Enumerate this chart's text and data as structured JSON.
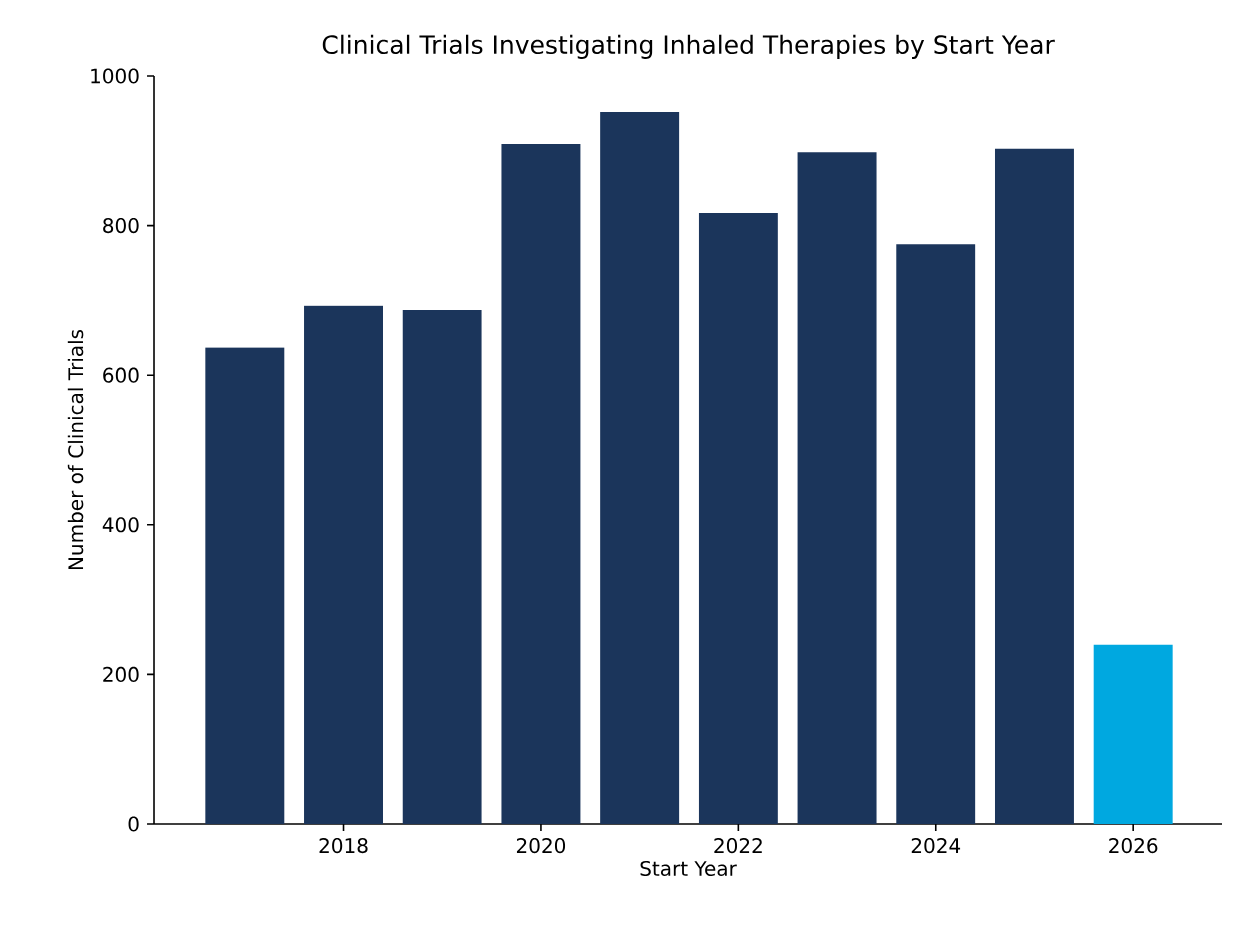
{
  "chart_data": {
    "type": "bar",
    "title": "Clinical Trials Investigating Inhaled Therapies by Start Year",
    "xlabel": "Start Year",
    "ylabel": "Number of Clinical Trials",
    "x": [
      2017,
      2018,
      2019,
      2020,
      2021,
      2022,
      2023,
      2024,
      2025,
      2026
    ],
    "values": [
      637,
      693,
      687,
      909,
      952,
      817,
      898,
      775,
      903,
      240
    ],
    "colors": [
      "#1b355b",
      "#1b355b",
      "#1b355b",
      "#1b355b",
      "#1b355b",
      "#1b355b",
      "#1b355b",
      "#1b355b",
      "#1b355b",
      "#00a8e0"
    ],
    "xlim": [
      2016.08,
      2026.9
    ],
    "xticks": [
      2018,
      2020,
      2022,
      2024,
      2026
    ],
    "ylim": [
      0,
      1000
    ],
    "yticks": [
      0,
      200,
      400,
      600,
      800,
      1000
    ],
    "grid": false
  }
}
